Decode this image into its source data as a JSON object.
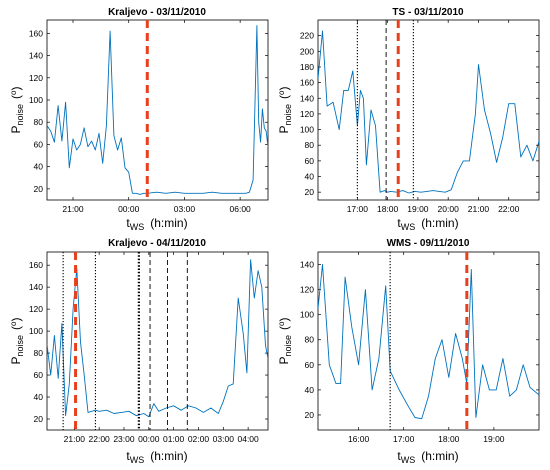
{
  "chart_data": [
    {
      "type": "line",
      "title": "Kraljevo - 03/11/2010",
      "ylabel": {
        "main": "P",
        "sub": "noise",
        "unit_open": "(",
        "unit": "o",
        "unit_close": ")"
      },
      "xlabel": {
        "main": "t",
        "sub": "WS",
        "unit": "(h:min)"
      },
      "x_unit": "hours",
      "xlim": [
        19.6,
        7.5
      ],
      "ylim": [
        10,
        172
      ],
      "x_ticks": [
        21,
        0,
        3,
        6
      ],
      "x_tick_labels": [
        "21:00",
        "00:00",
        "03:00",
        "06:00"
      ],
      "y_ticks": [
        20,
        40,
        60,
        80,
        100,
        120,
        140,
        160
      ],
      "y_tick_labels": [
        "20",
        "40",
        "60",
        "80",
        "100",
        "120",
        "140",
        "160"
      ],
      "series": [
        {
          "color": "#0072bd",
          "x": [
            19.6,
            19.8,
            20.0,
            20.2,
            20.4,
            20.6,
            20.8,
            21.0,
            21.2,
            21.4,
            21.6,
            21.8,
            22.0,
            22.2,
            22.4,
            22.6,
            22.8,
            23.0,
            23.2,
            23.4,
            23.6,
            23.8,
            0.0,
            0.2,
            0.4,
            0.6,
            0.8,
            1.0,
            1.5,
            2.0,
            2.5,
            3.0,
            3.5,
            4.0,
            4.5,
            5.0,
            5.5,
            6.0,
            6.3,
            6.5,
            6.7,
            6.9,
            7.0,
            7.1,
            7.2,
            7.3,
            7.4,
            7.5
          ],
          "y": [
            77,
            72,
            62,
            95,
            63,
            98,
            39,
            65,
            55,
            60,
            75,
            58,
            63,
            55,
            70,
            43,
            77,
            162,
            68,
            55,
            66,
            39,
            35,
            16,
            16,
            15,
            16,
            16,
            17,
            16,
            17,
            16,
            16,
            16,
            17,
            16,
            16,
            16,
            16,
            17,
            28,
            167,
            80,
            62,
            92,
            75,
            72,
            58
          ]
        }
      ],
      "markers": [
        {
          "x": 1.0,
          "style": "red-thick-dashed"
        }
      ]
    },
    {
      "type": "line",
      "title": "TS - 03/11/2010",
      "ylabel": {
        "main": "P",
        "sub": "noise",
        "unit_open": "(",
        "unit": "o",
        "unit_close": ")"
      },
      "xlabel": {
        "main": "t",
        "sub": "WS",
        "unit": "(h:min)"
      },
      "x_unit": "hours",
      "xlim": [
        15.7,
        23.0
      ],
      "ylim": [
        10,
        240
      ],
      "x_ticks": [
        17,
        18,
        19,
        20,
        21,
        22
      ],
      "x_tick_labels": [
        "17:00",
        "18:00",
        "19:00",
        "20:00",
        "21:00",
        "22:00"
      ],
      "y_ticks": [
        20,
        40,
        60,
        80,
        100,
        120,
        140,
        160,
        180,
        200,
        220
      ],
      "y_tick_labels": [
        "20",
        "40",
        "60",
        "80",
        "100",
        "120",
        "140",
        "160",
        "180",
        "200",
        "220"
      ],
      "series": [
        {
          "color": "#0072bd",
          "x": [
            15.7,
            15.85,
            16.0,
            16.2,
            16.4,
            16.55,
            16.7,
            16.85,
            17.0,
            17.1,
            17.2,
            17.3,
            17.45,
            17.6,
            17.75,
            17.9,
            18.0,
            18.1,
            18.3,
            18.5,
            18.7,
            18.9,
            19.1,
            19.3,
            19.5,
            19.7,
            19.9,
            20.1,
            20.3,
            20.5,
            20.7,
            20.9,
            21.0,
            21.2,
            21.4,
            21.6,
            21.8,
            22.0,
            22.2,
            22.4,
            22.6,
            22.8,
            23.0
          ],
          "y": [
            165,
            226,
            130,
            135,
            100,
            150,
            150,
            175,
            105,
            150,
            140,
            55,
            125,
            105,
            20,
            22,
            20,
            21,
            20,
            22,
            19,
            21,
            20,
            21,
            22,
            21,
            20,
            23,
            45,
            60,
            60,
            120,
            183,
            125,
            95,
            58,
            90,
            133,
            133,
            65,
            80,
            60,
            85
          ]
        }
      ],
      "markers": [
        {
          "x": 17.0,
          "style": "black-dotted"
        },
        {
          "x": 17.95,
          "style": "black-dashed"
        },
        {
          "x": 18.35,
          "style": "red-thick-dashed"
        },
        {
          "x": 18.85,
          "style": "black-dotted"
        }
      ]
    },
    {
      "type": "line",
      "title": "Kraljevo - 04/11/2010",
      "ylabel": {
        "main": "P",
        "sub": "noise",
        "unit_open": "(",
        "unit": "o",
        "unit_close": ")"
      },
      "xlabel": {
        "main": "t",
        "sub": "WS",
        "unit": "(h:min)"
      },
      "x_unit": "hours",
      "xlim": [
        19.9,
        4.8
      ],
      "ylim": [
        10,
        172
      ],
      "x_ticks": [
        21,
        22,
        23,
        0,
        1,
        2,
        3,
        4
      ],
      "x_tick_labels": [
        "21:00",
        "22:00",
        "23:00",
        "00:00",
        "01:00",
        "02:00",
        "03:00",
        "04:00"
      ],
      "y_ticks": [
        20,
        40,
        60,
        80,
        100,
        120,
        140,
        160
      ],
      "y_tick_labels": [
        "20",
        "40",
        "60",
        "80",
        "100",
        "120",
        "140",
        "160"
      ],
      "series": [
        {
          "color": "#0072bd",
          "x": [
            19.9,
            20.05,
            20.2,
            20.35,
            20.5,
            20.65,
            20.8,
            20.95,
            21.1,
            21.25,
            21.4,
            21.55,
            21.7,
            21.85,
            22.0,
            22.3,
            22.6,
            22.9,
            23.2,
            23.5,
            23.8,
            0.0,
            0.2,
            0.4,
            0.7,
            1.0,
            1.3,
            1.6,
            1.9,
            2.2,
            2.5,
            2.8,
            3.0,
            3.2,
            3.4,
            3.6,
            3.8,
            3.95,
            4.1,
            4.25,
            4.4,
            4.55,
            4.7,
            4.8
          ],
          "y": [
            88,
            60,
            96,
            57,
            107,
            23,
            52,
            120,
            157,
            90,
            60,
            26,
            27,
            28,
            27,
            28,
            25,
            26,
            27,
            23,
            25,
            22,
            34,
            27,
            30,
            32,
            28,
            32,
            30,
            26,
            30,
            25,
            36,
            50,
            52,
            130,
            98,
            62,
            165,
            130,
            155,
            140,
            87,
            75
          ]
        }
      ],
      "markers": [
        {
          "x": 20.55,
          "style": "black-dotted"
        },
        {
          "x": 21.05,
          "style": "red-thick-dashed"
        },
        {
          "x": 21.85,
          "style": "black-dotted"
        },
        {
          "x": 23.6,
          "style": "black-thick-dotted"
        },
        {
          "x": 0.05,
          "style": "black-dashed"
        },
        {
          "x": 0.75,
          "style": "black-dashed"
        },
        {
          "x": 1.55,
          "style": "black-dashed"
        }
      ]
    },
    {
      "type": "line",
      "title": "WMS - 09/11/2010",
      "ylabel": {
        "main": "P",
        "sub": "noise",
        "unit_open": "(",
        "unit": "o",
        "unit_close": ")"
      },
      "xlabel": {
        "main": "t",
        "sub": "WS",
        "unit": "(h:min)"
      },
      "x_unit": "hours",
      "xlim": [
        15.1,
        20.0
      ],
      "ylim": [
        8,
        150
      ],
      "x_ticks": [
        16,
        17,
        18,
        19
      ],
      "x_tick_labels": [
        "16:00",
        "17:00",
        "18:00",
        "19:00"
      ],
      "y_ticks": [
        20,
        40,
        60,
        80,
        100,
        120,
        140
      ],
      "y_tick_labels": [
        "20",
        "40",
        "60",
        "80",
        "100",
        "120",
        "140"
      ],
      "series": [
        {
          "color": "#0072bd",
          "x": [
            15.1,
            15.2,
            15.35,
            15.5,
            15.6,
            15.7,
            15.85,
            16.0,
            16.15,
            16.3,
            16.45,
            16.6,
            16.7,
            16.9,
            17.1,
            17.25,
            17.4,
            17.55,
            17.7,
            17.85,
            18.0,
            18.15,
            18.3,
            18.4,
            18.5,
            18.6,
            18.75,
            18.9,
            19.05,
            19.2,
            19.35,
            19.5,
            19.65,
            19.8,
            20.0
          ],
          "y": [
            105,
            140,
            60,
            45,
            45,
            130,
            90,
            60,
            120,
            40,
            65,
            123,
            55,
            40,
            27,
            18,
            17,
            35,
            65,
            80,
            50,
            85,
            65,
            45,
            136,
            18,
            60,
            40,
            40,
            65,
            35,
            40,
            60,
            42,
            36
          ]
        }
      ],
      "markers": [
        {
          "x": 16.7,
          "style": "black-dotted"
        },
        {
          "x": 18.4,
          "style": "red-thick-dashed"
        }
      ]
    }
  ]
}
